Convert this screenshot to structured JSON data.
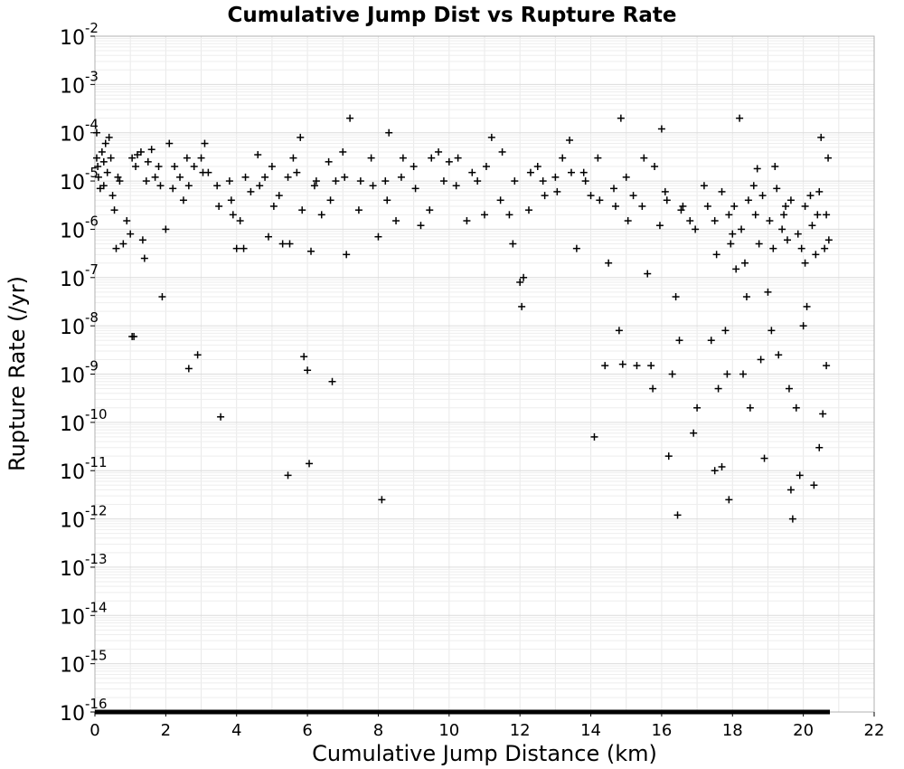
{
  "chart_data": {
    "type": "scatter",
    "title": "Cumulative Jump Dist vs Rupture Rate",
    "xlabel": "Cumulative Jump Distance (km)",
    "ylabel": "Rupture Rate (/yr)",
    "x_scale": "linear",
    "y_scale": "log",
    "xlim": [
      0,
      22
    ],
    "ylim": [
      1e-16,
      0.01
    ],
    "x_ticks": [
      "0",
      "2",
      "4",
      "6",
      "8",
      "10",
      "12",
      "14",
      "16",
      "18",
      "20",
      "22"
    ],
    "y_ticks": [
      {
        "base": "10",
        "exp": "-2"
      },
      {
        "base": "10",
        "exp": "-3"
      },
      {
        "base": "10",
        "exp": "-4"
      },
      {
        "base": "10",
        "exp": "-5"
      },
      {
        "base": "10",
        "exp": "-6"
      },
      {
        "base": "10",
        "exp": "-7"
      },
      {
        "base": "10",
        "exp": "-8"
      },
      {
        "base": "10",
        "exp": "-9"
      },
      {
        "base": "10",
        "exp": "-10"
      },
      {
        "base": "10",
        "exp": "-11"
      },
      {
        "base": "10",
        "exp": "-12"
      },
      {
        "base": "10",
        "exp": "-13"
      },
      {
        "base": "10",
        "exp": "-14"
      },
      {
        "base": "10",
        "exp": "-15"
      },
      {
        "base": "10",
        "exp": "-16"
      }
    ],
    "grid": true,
    "marker": "plus",
    "marker_color": "#000000",
    "floor_series": {
      "y": 1e-16,
      "x_range": [
        0,
        20.75
      ]
    },
    "series": [
      {
        "points": [
          [
            0.05,
            0.0001
          ],
          [
            0.05,
            3e-05
          ],
          [
            0.08,
            2e-05
          ],
          [
            0.1,
            1.2e-05
          ],
          [
            0.15,
            7e-06
          ],
          [
            0.2,
            4e-05
          ],
          [
            0.25,
            2.5e-05
          ],
          [
            0.3,
            6e-05
          ],
          [
            0.35,
            1.5e-05
          ],
          [
            0.4,
            8e-05
          ],
          [
            0.45,
            3e-05
          ],
          [
            0.5,
            5e-06
          ],
          [
            0.55,
            2.5e-06
          ],
          [
            0.6,
            4e-07
          ],
          [
            0.7,
            1e-05
          ],
          [
            0.8,
            5e-07
          ],
          [
            0.9,
            1.5e-06
          ],
          [
            1.0,
            8e-07
          ],
          [
            1.05,
            6e-09
          ],
          [
            1.1,
            6e-09
          ],
          [
            1.15,
            2e-05
          ],
          [
            1.2,
            3.5e-05
          ],
          [
            1.3,
            4e-05
          ],
          [
            1.35,
            6e-07
          ],
          [
            1.4,
            2.5e-07
          ],
          [
            1.5,
            2.5e-05
          ],
          [
            1.6,
            4.5e-05
          ],
          [
            1.7,
            1.2e-05
          ],
          [
            1.8,
            2e-05
          ],
          [
            1.9,
            4e-08
          ],
          [
            2.0,
            1e-06
          ],
          [
            2.1,
            6e-05
          ],
          [
            2.2,
            7e-06
          ],
          [
            2.4,
            1.2e-05
          ],
          [
            2.5,
            4e-06
          ],
          [
            2.6,
            3e-05
          ],
          [
            2.65,
            1.3e-09
          ],
          [
            2.8,
            2e-05
          ],
          [
            2.9,
            2.5e-09
          ],
          [
            3.0,
            3e-05
          ],
          [
            3.1,
            6e-05
          ],
          [
            3.2,
            1.5e-05
          ],
          [
            3.5,
            3e-06
          ],
          [
            3.55,
            1.3e-10
          ],
          [
            3.8,
            1e-05
          ],
          [
            3.9,
            2e-06
          ],
          [
            4.0,
            4e-07
          ],
          [
            4.1,
            1.5e-06
          ],
          [
            4.2,
            4e-07
          ],
          [
            4.4,
            6e-06
          ],
          [
            4.6,
            3.5e-05
          ],
          [
            4.8,
            1.2e-05
          ],
          [
            4.9,
            7e-07
          ],
          [
            5.0,
            2e-05
          ],
          [
            5.2,
            5e-06
          ],
          [
            5.3,
            5e-07
          ],
          [
            5.45,
            8e-12
          ],
          [
            5.5,
            5e-07
          ],
          [
            5.6,
            3e-05
          ],
          [
            5.7,
            1.5e-05
          ],
          [
            5.8,
            8e-05
          ],
          [
            5.9,
            2.3e-09
          ],
          [
            6.0,
            1.2e-09
          ],
          [
            6.05,
            1.4e-11
          ],
          [
            6.1,
            3.5e-07
          ],
          [
            6.2,
            8e-06
          ],
          [
            6.4,
            2e-06
          ],
          [
            6.6,
            2.5e-05
          ],
          [
            6.7,
            7e-10
          ],
          [
            6.8,
            1e-05
          ],
          [
            7.0,
            4e-05
          ],
          [
            7.1,
            3e-07
          ],
          [
            7.2,
            0.0002
          ],
          [
            7.5,
            1e-05
          ],
          [
            7.8,
            3e-05
          ],
          [
            8.0,
            7e-07
          ],
          [
            8.1,
            2.5e-12
          ],
          [
            8.2,
            1e-05
          ],
          [
            8.3,
            0.0001
          ],
          [
            8.5,
            1.5e-06
          ],
          [
            8.7,
            3e-05
          ],
          [
            9.0,
            2e-05
          ],
          [
            9.2,
            1.2e-06
          ],
          [
            9.5,
            3e-05
          ],
          [
            9.7,
            4e-05
          ],
          [
            10.0,
            2.5e-05
          ],
          [
            10.2,
            8e-06
          ],
          [
            10.5,
            1.5e-06
          ],
          [
            10.8,
            1e-05
          ],
          [
            11.0,
            2e-06
          ],
          [
            11.2,
            8e-05
          ],
          [
            11.5,
            4e-05
          ],
          [
            11.7,
            2e-06
          ],
          [
            11.8,
            5e-07
          ],
          [
            12.0,
            8e-08
          ],
          [
            12.05,
            2.5e-08
          ],
          [
            12.1,
            1e-07
          ],
          [
            12.3,
            1.5e-05
          ],
          [
            12.5,
            2e-05
          ],
          [
            12.7,
            5e-06
          ],
          [
            13.0,
            1.2e-05
          ],
          [
            13.2,
            3e-05
          ],
          [
            13.4,
            7e-05
          ],
          [
            13.6,
            4e-07
          ],
          [
            13.8,
            1.5e-05
          ],
          [
            14.0,
            5e-06
          ],
          [
            14.1,
            5e-11
          ],
          [
            14.2,
            3e-05
          ],
          [
            14.4,
            1.5e-09
          ],
          [
            14.5,
            2e-07
          ],
          [
            14.7,
            3e-06
          ],
          [
            14.8,
            8e-09
          ],
          [
            14.85,
            0.0002
          ],
          [
            14.9,
            1.6e-09
          ],
          [
            15.0,
            1.2e-05
          ],
          [
            15.2,
            5e-06
          ],
          [
            15.3,
            1.5e-09
          ],
          [
            15.5,
            3e-05
          ],
          [
            15.6,
            1.2e-07
          ],
          [
            15.7,
            1.5e-09
          ],
          [
            15.75,
            5e-10
          ],
          [
            15.8,
            2e-05
          ],
          [
            16.0,
            0.00012
          ],
          [
            16.1,
            6e-06
          ],
          [
            16.2,
            2e-11
          ],
          [
            16.3,
            1e-09
          ],
          [
            16.4,
            4e-08
          ],
          [
            16.45,
            1.2e-12
          ],
          [
            16.5,
            5e-09
          ],
          [
            16.6,
            3e-06
          ],
          [
            16.8,
            1.5e-06
          ],
          [
            16.9,
            6e-11
          ],
          [
            17.0,
            2e-10
          ],
          [
            17.2,
            8e-06
          ],
          [
            17.4,
            5e-09
          ],
          [
            17.5,
            1e-11
          ],
          [
            17.6,
            5e-10
          ],
          [
            17.7,
            1.2e-11
          ],
          [
            17.8,
            8e-09
          ],
          [
            17.85,
            1e-09
          ],
          [
            17.9,
            2.5e-12
          ],
          [
            18.0,
            8e-07
          ],
          [
            18.1,
            1.5e-07
          ],
          [
            18.2,
            0.0002
          ],
          [
            18.3,
            1e-09
          ],
          [
            18.4,
            4e-08
          ],
          [
            18.5,
            2e-10
          ],
          [
            18.6,
            8e-06
          ],
          [
            18.7,
            1.8e-05
          ],
          [
            18.8,
            2e-09
          ],
          [
            18.9,
            1.8e-11
          ],
          [
            19.0,
            5e-08
          ],
          [
            19.1,
            8e-09
          ],
          [
            19.2,
            2e-05
          ],
          [
            19.3,
            2.5e-09
          ],
          [
            19.4,
            1e-06
          ],
          [
            19.5,
            3e-06
          ],
          [
            19.6,
            5e-10
          ],
          [
            19.65,
            4e-12
          ],
          [
            19.7,
            1e-12
          ],
          [
            19.8,
            2e-10
          ],
          [
            19.9,
            8e-12
          ],
          [
            20.0,
            1e-08
          ],
          [
            20.05,
            2e-07
          ],
          [
            20.1,
            2.5e-08
          ],
          [
            20.2,
            5e-06
          ],
          [
            20.3,
            5e-12
          ],
          [
            20.4,
            2e-06
          ],
          [
            20.45,
            3e-11
          ],
          [
            20.5,
            8e-05
          ],
          [
            20.55,
            1.5e-10
          ],
          [
            20.6,
            4e-07
          ],
          [
            20.65,
            1.5e-09
          ],
          [
            20.7,
            3e-05
          ],
          [
            20.72,
            6e-07
          ],
          [
            17.3,
            3e-06
          ],
          [
            17.5,
            1.5e-06
          ],
          [
            17.7,
            6e-06
          ],
          [
            17.9,
            2e-06
          ],
          [
            18.05,
            3e-06
          ],
          [
            18.25,
            1e-06
          ],
          [
            18.45,
            4e-06
          ],
          [
            18.65,
            2e-06
          ],
          [
            18.85,
            5e-06
          ],
          [
            19.05,
            1.5e-06
          ],
          [
            19.25,
            7e-06
          ],
          [
            19.45,
            2e-06
          ],
          [
            19.65,
            4e-06
          ],
          [
            19.85,
            8e-07
          ],
          [
            20.05,
            3e-06
          ],
          [
            20.25,
            1.2e-06
          ],
          [
            20.45,
            6e-06
          ],
          [
            20.65,
            2e-06
          ],
          [
            19.15,
            4e-07
          ],
          [
            19.55,
            6e-07
          ],
          [
            19.95,
            4e-07
          ],
          [
            20.35,
            3e-07
          ],
          [
            18.75,
            5e-07
          ],
          [
            18.35,
            2e-07
          ],
          [
            17.95,
            5e-07
          ],
          [
            17.55,
            3e-07
          ],
          [
            16.95,
            1e-06
          ],
          [
            16.55,
            2.5e-06
          ],
          [
            16.15,
            4e-06
          ],
          [
            15.95,
            1.2e-06
          ],
          [
            15.45,
            3e-06
          ],
          [
            15.05,
            1.5e-06
          ],
          [
            14.65,
            7e-06
          ],
          [
            14.25,
            4e-06
          ],
          [
            13.85,
            1e-05
          ],
          [
            13.45,
            1.5e-05
          ],
          [
            13.05,
            6e-06
          ],
          [
            12.65,
            1e-05
          ],
          [
            12.25,
            2.5e-06
          ],
          [
            11.85,
            1e-05
          ],
          [
            11.45,
            4e-06
          ],
          [
            11.05,
            2e-05
          ],
          [
            10.65,
            1.5e-05
          ],
          [
            10.25,
            3e-05
          ],
          [
            9.85,
            1e-05
          ],
          [
            9.45,
            2.5e-06
          ],
          [
            9.05,
            7e-06
          ],
          [
            8.65,
            1.2e-05
          ],
          [
            8.25,
            4e-06
          ],
          [
            7.85,
            8e-06
          ],
          [
            7.45,
            2.5e-06
          ],
          [
            7.05,
            1.2e-05
          ],
          [
            6.65,
            4e-06
          ],
          [
            6.25,
            1e-05
          ],
          [
            5.85,
            2.5e-06
          ],
          [
            5.45,
            1.2e-05
          ],
          [
            5.05,
            3e-06
          ],
          [
            4.65,
            8e-06
          ],
          [
            4.25,
            1.2e-05
          ],
          [
            3.85,
            4e-06
          ],
          [
            3.45,
            8e-06
          ],
          [
            3.05,
            1.5e-05
          ],
          [
            2.65,
            8e-06
          ],
          [
            2.25,
            2e-05
          ],
          [
            1.85,
            8e-06
          ],
          [
            1.45,
            1e-05
          ],
          [
            1.05,
            3e-05
          ],
          [
            0.65,
            1.2e-05
          ],
          [
            0.25,
            8e-06
          ]
        ]
      }
    ]
  }
}
